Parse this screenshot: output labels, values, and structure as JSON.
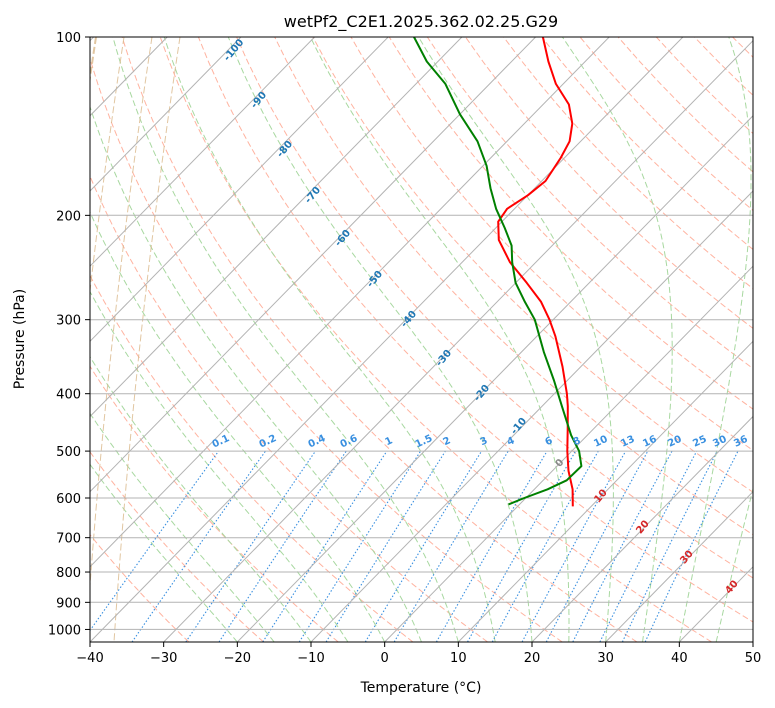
{
  "chart_data": {
    "type": "skew-t log-p",
    "title": "wetPf2_C2E1.2025.362.02.25.G29",
    "xlabel": "Temperature (°C)",
    "ylabel": "Pressure (hPa)",
    "xlim": [
      -40,
      50
    ],
    "ylim_hpa": [
      1050,
      100
    ],
    "x_ticks": [
      -40,
      -30,
      -20,
      -10,
      0,
      10,
      20,
      30,
      40,
      50
    ],
    "y_ticks": [
      100,
      200,
      300,
      400,
      500,
      600,
      700,
      800,
      900,
      1000
    ],
    "temperature_profile": {
      "name": "Temperature",
      "color": "#ff0000",
      "points": [
        {
          "p": 620,
          "t": 7.5
        },
        {
          "p": 580,
          "t": 5.2
        },
        {
          "p": 540,
          "t": 2.2
        },
        {
          "p": 500,
          "t": -0.6
        },
        {
          "p": 460,
          "t": -3.4
        },
        {
          "p": 420,
          "t": -6.5
        },
        {
          "p": 400,
          "t": -8.3
        },
        {
          "p": 360,
          "t": -12.5
        },
        {
          "p": 320,
          "t": -17.5
        },
        {
          "p": 300,
          "t": -20.5
        },
        {
          "p": 280,
          "t": -24.0
        },
        {
          "p": 260,
          "t": -28.5
        },
        {
          "p": 240,
          "t": -33.5
        },
        {
          "p": 220,
          "t": -38.0
        },
        {
          "p": 205,
          "t": -40.5
        },
        {
          "p": 195,
          "t": -41.0
        },
        {
          "p": 185,
          "t": -40.0
        },
        {
          "p": 175,
          "t": -39.5
        },
        {
          "p": 160,
          "t": -40.5
        },
        {
          "p": 150,
          "t": -41.5
        },
        {
          "p": 140,
          "t": -43.5
        },
        {
          "p": 130,
          "t": -46.5
        },
        {
          "p": 120,
          "t": -51.0
        },
        {
          "p": 110,
          "t": -55.0
        },
        {
          "p": 100,
          "t": -59.0
        }
      ]
    },
    "dewpoint_profile": {
      "name": "Dewpoint",
      "color": "#008000",
      "points": [
        {
          "p": 615,
          "t": -1.5
        },
        {
          "p": 600,
          "t": -0.2
        },
        {
          "p": 580,
          "t": 1.8
        },
        {
          "p": 560,
          "t": 3.2
        },
        {
          "p": 530,
          "t": 3.3
        },
        {
          "p": 500,
          "t": 1.0
        },
        {
          "p": 470,
          "t": -2.2
        },
        {
          "p": 440,
          "t": -5.2
        },
        {
          "p": 420,
          "t": -7.3
        },
        {
          "p": 380,
          "t": -11.8
        },
        {
          "p": 340,
          "t": -17.0
        },
        {
          "p": 300,
          "t": -22.5
        },
        {
          "p": 280,
          "t": -26.2
        },
        {
          "p": 260,
          "t": -30.0
        },
        {
          "p": 240,
          "t": -33.2
        },
        {
          "p": 225,
          "t": -35.5
        },
        {
          "p": 210,
          "t": -38.8
        },
        {
          "p": 195,
          "t": -42.5
        },
        {
          "p": 180,
          "t": -46.0
        },
        {
          "p": 165,
          "t": -49.5
        },
        {
          "p": 150,
          "t": -54.0
        },
        {
          "p": 135,
          "t": -60.0
        },
        {
          "p": 120,
          "t": -66.0
        },
        {
          "p": 110,
          "t": -71.5
        },
        {
          "p": 100,
          "t": -76.5
        }
      ]
    },
    "dry_adiabat_labels": [
      -100,
      -90,
      -80,
      -70,
      -60,
      -50,
      -40,
      -30,
      -20,
      -10
    ],
    "moist_adiabat_labels": [
      0,
      10,
      20,
      30,
      40
    ],
    "mixing_ratio_labels": [
      "0.1",
      "0.2",
      "0.4",
      "0.6",
      "1",
      "1.5",
      "2",
      "3",
      "4",
      "6",
      "8",
      "10",
      "13",
      "16",
      "20",
      "25",
      "30",
      "36"
    ],
    "mixing_ratio_values": [
      0.1,
      0.2,
      0.4,
      0.6,
      1,
      1.5,
      2,
      3,
      4,
      6,
      8,
      10,
      13,
      16,
      20,
      25,
      30,
      36
    ],
    "colors": {
      "isotherm": "#b3b3b3",
      "isobar": "#b3b3b3",
      "dry_adiabat": "#ffb3a0",
      "moist_adiabat": "#a8d8a0",
      "mixing_ratio": "#3a90e0",
      "dry_label": "#1f77b4",
      "mix_label": "#3a90e0",
      "moist_label": "#d62728",
      "theta_circle": "#d9b88a"
    }
  }
}
